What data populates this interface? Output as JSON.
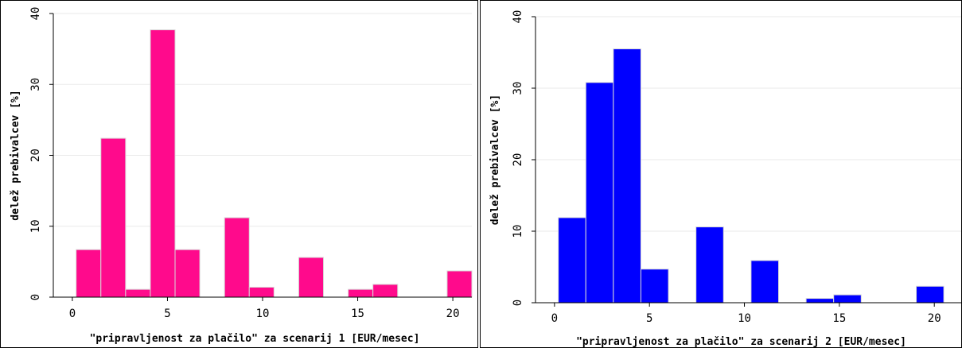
{
  "charts": [
    {
      "chart_data": {
        "type": "bar",
        "xlabel": "\"pripravljenost za plačilo\" za scenarij 1 [EUR/mesec]",
        "ylabel": "delež prebivalcev [%]",
        "xlim": [
          -1,
          21
        ],
        "ylim": [
          0,
          40
        ],
        "xticks": [
          0,
          5,
          10,
          15,
          20
        ],
        "yticks": [
          0,
          10,
          20,
          30,
          40
        ],
        "grid": "horizontal",
        "bin_width": 1.3,
        "bars": [
          {
            "x_start": 0.2,
            "value": 6.7
          },
          {
            "x_start": 1.5,
            "value": 22.4
          },
          {
            "x_start": 2.8,
            "value": 1.1
          },
          {
            "x_start": 4.1,
            "value": 37.7
          },
          {
            "x_start": 5.4,
            "value": 6.7
          },
          {
            "x_start": 8.0,
            "value": 11.2
          },
          {
            "x_start": 9.3,
            "value": 1.4
          },
          {
            "x_start": 11.9,
            "value": 5.6
          },
          {
            "x_start": 14.5,
            "value": 1.1
          },
          {
            "x_start": 15.8,
            "value": 1.8
          },
          {
            "x_start": 19.7,
            "value": 3.7
          }
        ],
        "bar_color": "#ff0a8c"
      }
    },
    {
      "chart_data": {
        "type": "bar",
        "xlabel": "\"pripravljenost za plačilo\" za scenarij 2 [EUR/mesec]",
        "ylabel": "delež prebivalcev [%]",
        "xlim": [
          -1,
          21.5
        ],
        "ylim": [
          0,
          40
        ],
        "xticks": [
          0,
          5,
          10,
          15,
          20
        ],
        "yticks": [
          0,
          10,
          20,
          30,
          40
        ],
        "grid": "horizontal",
        "bin_width": 1.45,
        "bars": [
          {
            "x_start": 0.2,
            "value": 11.9
          },
          {
            "x_start": 1.65,
            "value": 30.8
          },
          {
            "x_start": 3.1,
            "value": 35.5
          },
          {
            "x_start": 4.55,
            "value": 4.7
          },
          {
            "x_start": 7.45,
            "value": 10.6
          },
          {
            "x_start": 10.35,
            "value": 5.9
          },
          {
            "x_start": 13.25,
            "value": 0.6
          },
          {
            "x_start": 14.7,
            "value": 1.1
          },
          {
            "x_start": 19.05,
            "value": 2.3
          }
        ],
        "bar_color": "#0000ff"
      }
    }
  ]
}
